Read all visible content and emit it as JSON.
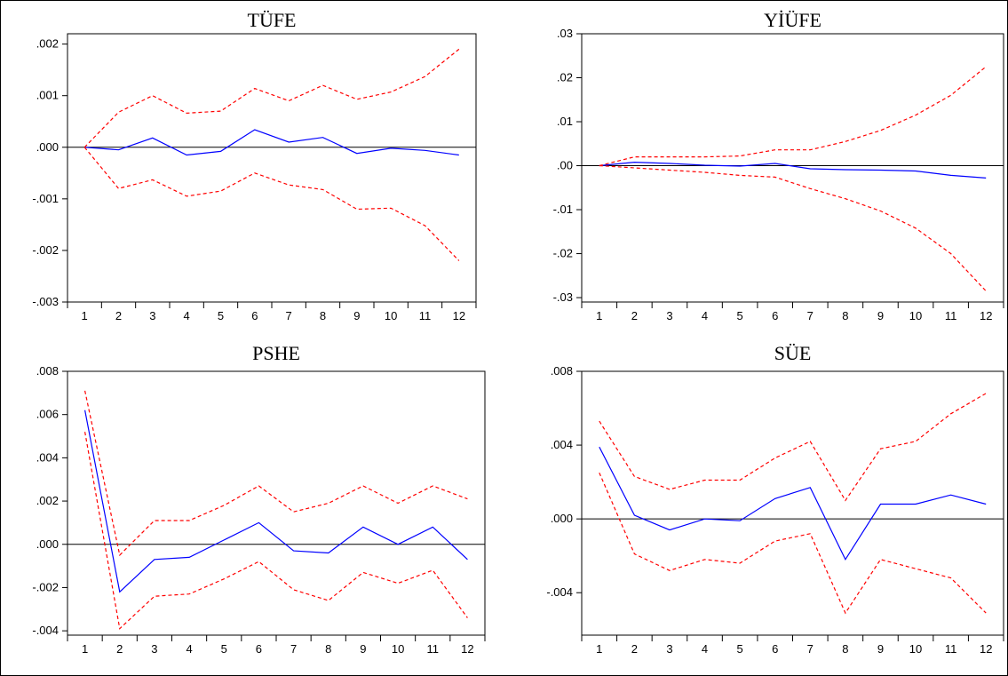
{
  "chart_data": [
    {
      "type": "line",
      "title": "TÜFE",
      "categories": [
        "1",
        "2",
        "3",
        "4",
        "5",
        "6",
        "7",
        "8",
        "9",
        "10",
        "11",
        "12"
      ],
      "ylim": [
        -0.003,
        0.0022
      ],
      "yticks": [
        0.002,
        0.001,
        0.0,
        -0.001,
        -0.002,
        -0.003
      ],
      "ytick_labels": [
        ".002",
        ".001",
        ".000",
        "-.001",
        "-.002",
        "-.003"
      ],
      "zero_line": true,
      "series": [
        {
          "role": "response",
          "color": "#0000ff",
          "dashed": false,
          "values": [
            0.0,
            -5e-05,
            0.00018,
            -0.00015,
            -8e-05,
            0.00034,
            0.0001,
            0.00019,
            -0.00012,
            -2e-05,
            -6e-05,
            -0.00015
          ]
        },
        {
          "role": "upper-band",
          "color": "#ff0000",
          "dashed": true,
          "values": [
            0.0,
            0.00068,
            0.001,
            0.00066,
            0.0007,
            0.00114,
            0.0009,
            0.0012,
            0.00093,
            0.00107,
            0.00137,
            0.0019
          ]
        },
        {
          "role": "lower-band",
          "color": "#ff0000",
          "dashed": true,
          "values": [
            0.0,
            -0.0008,
            -0.00063,
            -0.00095,
            -0.00085,
            -0.0005,
            -0.00073,
            -0.00082,
            -0.0012,
            -0.00118,
            -0.00152,
            -0.0022
          ]
        }
      ]
    },
    {
      "type": "line",
      "title": "YİÜFE",
      "categories": [
        "1",
        "2",
        "3",
        "4",
        "5",
        "6",
        "7",
        "8",
        "9",
        "10",
        "11",
        "12"
      ],
      "ylim": [
        -0.031,
        0.03
      ],
      "yticks": [
        0.03,
        0.02,
        0.01,
        0.0,
        -0.01,
        -0.02,
        -0.03
      ],
      "ytick_labels": [
        ".03",
        ".02",
        ".01",
        ".00",
        "-.01",
        "-.02",
        "-.03"
      ],
      "zero_line": true,
      "series": [
        {
          "role": "response",
          "color": "#0000ff",
          "dashed": false,
          "values": [
            0.0,
            0.0008,
            0.0005,
            0.0001,
            -0.0001,
            0.0005,
            -0.0007,
            -0.0009,
            -0.001,
            -0.0012,
            -0.0022,
            -0.0028
          ]
        },
        {
          "role": "upper-band",
          "color": "#ff0000",
          "dashed": true,
          "values": [
            0.0,
            0.002,
            0.002,
            0.002,
            0.0022,
            0.0036,
            0.0036,
            0.0055,
            0.008,
            0.0115,
            0.016,
            0.0225
          ]
        },
        {
          "role": "lower-band",
          "color": "#ff0000",
          "dashed": true,
          "values": [
            0.0,
            -0.0005,
            -0.001,
            -0.0015,
            -0.0022,
            -0.0026,
            -0.0052,
            -0.0075,
            -0.0103,
            -0.0142,
            -0.02,
            -0.0285
          ]
        }
      ]
    },
    {
      "type": "line",
      "title": "PSHE",
      "categories": [
        "1",
        "2",
        "3",
        "4",
        "5",
        "6",
        "7",
        "8",
        "9",
        "10",
        "11",
        "12"
      ],
      "ylim": [
        -0.0042,
        0.008
      ],
      "yticks": [
        0.008,
        0.006,
        0.004,
        0.002,
        0.0,
        -0.002,
        -0.004
      ],
      "ytick_labels": [
        ".008",
        ".006",
        ".004",
        ".002",
        ".000",
        "-.002",
        "-.004"
      ],
      "zero_line": true,
      "series": [
        {
          "role": "response",
          "color": "#0000ff",
          "dashed": false,
          "values": [
            0.0062,
            -0.0022,
            -0.0007,
            -0.0006,
            0.0002,
            0.001,
            -0.0003,
            -0.0004,
            0.0008,
            0.0,
            0.0008,
            -0.0007
          ]
        },
        {
          "role": "upper-band",
          "color": "#ff0000",
          "dashed": true,
          "values": [
            0.0071,
            -0.0005,
            0.0011,
            0.0011,
            0.0018,
            0.0027,
            0.0015,
            0.0019,
            0.0027,
            0.0019,
            0.0027,
            0.0021
          ]
        },
        {
          "role": "lower-band",
          "color": "#ff0000",
          "dashed": true,
          "values": [
            0.0052,
            -0.0039,
            -0.0024,
            -0.0023,
            -0.0016,
            -0.0008,
            -0.0021,
            -0.0026,
            -0.0013,
            -0.0018,
            -0.0012,
            -0.0034
          ]
        }
      ]
    },
    {
      "type": "line",
      "title": "SÜE",
      "categories": [
        "1",
        "2",
        "3",
        "4",
        "5",
        "6",
        "7",
        "8",
        "9",
        "10",
        "11",
        "12"
      ],
      "ylim": [
        -0.0063,
        0.008
      ],
      "yticks": [
        0.008,
        0.004,
        0.0,
        -0.004
      ],
      "ytick_labels": [
        ".008",
        ".004",
        ".000",
        "-.004"
      ],
      "zero_line": true,
      "series": [
        {
          "role": "response",
          "color": "#0000ff",
          "dashed": false,
          "values": [
            0.0039,
            0.0002,
            -0.0006,
            0.0,
            -0.0001,
            0.0011,
            0.0017,
            -0.0022,
            0.0008,
            0.0008,
            0.0013,
            0.0008
          ]
        },
        {
          "role": "upper-band",
          "color": "#ff0000",
          "dashed": true,
          "values": [
            0.0053,
            0.0023,
            0.0016,
            0.0021,
            0.0021,
            0.0033,
            0.0042,
            0.001,
            0.0038,
            0.0042,
            0.0057,
            0.0068
          ]
        },
        {
          "role": "lower-band",
          "color": "#ff0000",
          "dashed": true,
          "values": [
            0.0025,
            -0.0019,
            -0.0028,
            -0.0022,
            -0.0024,
            -0.0012,
            -0.0008,
            -0.0051,
            -0.0022,
            -0.0027,
            -0.0032,
            -0.0051
          ]
        }
      ]
    }
  ]
}
